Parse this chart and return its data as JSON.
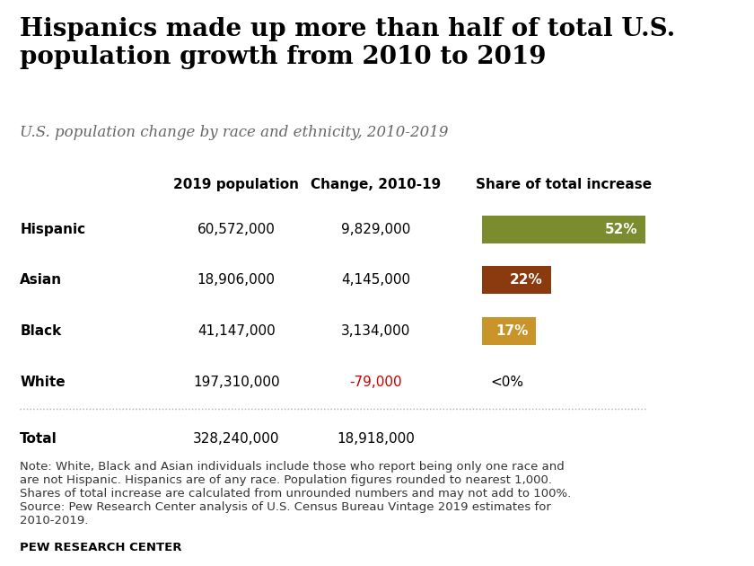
{
  "title": "Hispanics made up more than half of total U.S.\npopulation growth from 2010 to 2019",
  "subtitle": "U.S. population change by race and ethnicity, 2010-2019",
  "col_headers": [
    "2019 population",
    "Change, 2010-19",
    "Share of total increase"
  ],
  "rows": [
    {
      "label": "Hispanic",
      "pop": "60,572,000",
      "change": "9,829,000",
      "share": "52%",
      "bar_color": "#7a8c2e",
      "bar_width": 1.0
    },
    {
      "label": "Asian",
      "pop": "18,906,000",
      "change": "4,145,000",
      "share": "22%",
      "bar_color": "#8b3a0f",
      "bar_width": 0.42
    },
    {
      "label": "Black",
      "pop": "41,147,000",
      "change": "3,134,000",
      "share": "17%",
      "bar_color": "#c9952a",
      "bar_width": 0.33
    },
    {
      "label": "White",
      "pop": "197,310,000",
      "change": "-79,000",
      "share": "<0%",
      "bar_color": null,
      "bar_width": 0
    }
  ],
  "total_row": {
    "label": "Total",
    "pop": "328,240,000",
    "change": "18,918,000"
  },
  "note": "Note: White, Black and Asian individuals include those who report being only one race and\nare not Hispanic. Hispanics are of any race. Population figures rounded to nearest 1,000.\nShares of total increase are calculated from unrounded numbers and may not add to 100%.\nSource: Pew Research Center analysis of U.S. Census Bureau Vintage 2019 estimates for\n2010-2019.",
  "source_label": "PEW RESEARCH CENTER",
  "change_red_color": "#cc0000",
  "background_color": "#ffffff",
  "title_fontsize": 20,
  "subtitle_fontsize": 12,
  "header_fontsize": 11,
  "row_fontsize": 11,
  "note_fontsize": 9.5
}
